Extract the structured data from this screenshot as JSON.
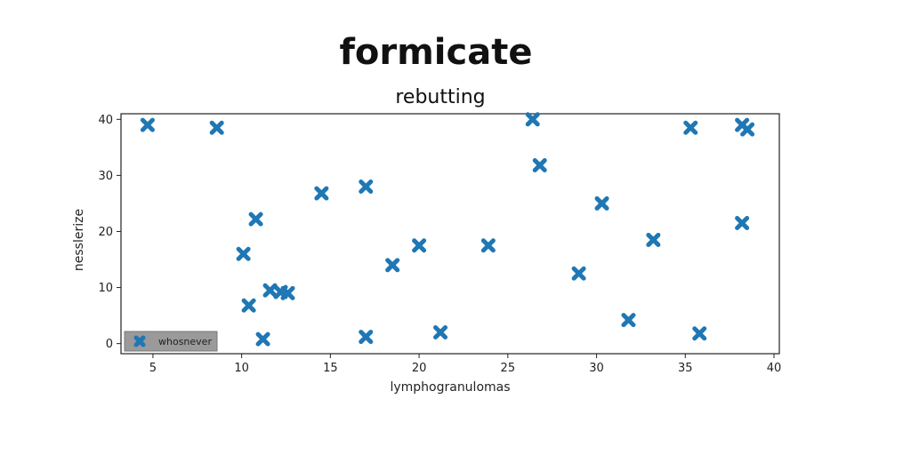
{
  "chart_data": {
    "type": "scatter",
    "title": "formicate",
    "subtitle": "rebutting",
    "xlabel": "lymphogranulomas",
    "ylabel": "nesslerize",
    "xlim": [
      3.2,
      40.3
    ],
    "ylim": [
      -1.8,
      41
    ],
    "xticks": [
      5,
      10,
      15,
      20,
      25,
      30,
      35,
      40
    ],
    "yticks": [
      0,
      10,
      20,
      30,
      40
    ],
    "grid": false,
    "legend_position": "lower-left",
    "marker": "X",
    "color": "#1f77b4",
    "series": [
      {
        "name": "whosnever",
        "points": [
          [
            4.7,
            39.0
          ],
          [
            8.6,
            38.5
          ],
          [
            10.1,
            16.0
          ],
          [
            10.4,
            6.8
          ],
          [
            10.8,
            22.2
          ],
          [
            11.2,
            0.8
          ],
          [
            11.6,
            9.5
          ],
          [
            12.2,
            9.2
          ],
          [
            12.6,
            9.0
          ],
          [
            14.5,
            26.8
          ],
          [
            17.0,
            28.0
          ],
          [
            17.0,
            1.2
          ],
          [
            18.5,
            14.0
          ],
          [
            20.0,
            17.5
          ],
          [
            21.2,
            2.0
          ],
          [
            23.9,
            17.5
          ],
          [
            26.4,
            40.0
          ],
          [
            26.8,
            31.8
          ],
          [
            29.0,
            12.5
          ],
          [
            30.3,
            25.0
          ],
          [
            31.8,
            4.2
          ],
          [
            33.2,
            18.5
          ],
          [
            35.3,
            38.5
          ],
          [
            35.8,
            1.8
          ],
          [
            38.2,
            39.0
          ],
          [
            38.5,
            38.2
          ],
          [
            38.2,
            21.5
          ]
        ]
      }
    ]
  }
}
